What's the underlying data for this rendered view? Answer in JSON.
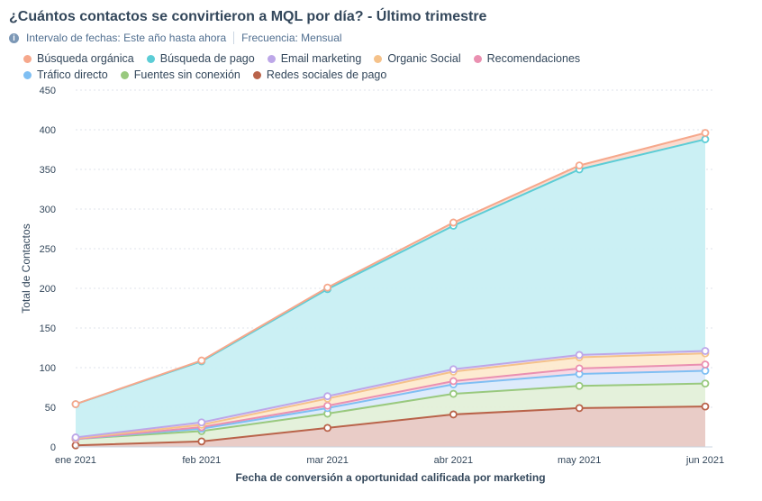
{
  "header": {
    "title": "¿Cuántos contactos se convirtieron a MQL por día? - Último trimestre",
    "date_range": "Intervalo de fechas: Este año hasta ahora",
    "frequency": "Frecuencia: Mensual",
    "info_icon": "info-icon"
  },
  "chart_data": {
    "type": "area",
    "stacked": true,
    "x": [
      "ene 2021",
      "feb 2021",
      "mar 2021",
      "abr 2021",
      "may 2021",
      "jun 2021"
    ],
    "xlabel": "Fecha de conversión a oportunidad calificada por marketing",
    "ylabel": "Total de Contactos",
    "ylim": [
      0,
      450
    ],
    "yticks": [
      0,
      50,
      100,
      150,
      200,
      250,
      300,
      350,
      400,
      450
    ],
    "grid": true,
    "legend_position": "top-left",
    "series": [
      {
        "name": "Redes sociales de pago",
        "color": "#b9634a",
        "fill": "#e8c9c4",
        "values": [
          2,
          7,
          24,
          41,
          49,
          51
        ]
      },
      {
        "name": "Fuentes sin conexión",
        "color": "#99c97e",
        "fill": "#e3f0d9",
        "values": [
          8,
          13,
          18,
          26,
          28,
          29
        ]
      },
      {
        "name": "Tráfico directo",
        "color": "#7fbff3",
        "fill": "#dbeafb",
        "values": [
          0,
          3,
          7,
          12,
          15,
          16
        ]
      },
      {
        "name": "Recomendaciones",
        "color": "#ea90b1",
        "fill": "#f7d8e4",
        "values": [
          0,
          2,
          3,
          4,
          7,
          8
        ]
      },
      {
        "name": "Organic Social",
        "color": "#f5c28a",
        "fill": "#fdeacf",
        "values": [
          1,
          3,
          9,
          12,
          14,
          14
        ]
      },
      {
        "name": "Email marketing",
        "color": "#bda7e8",
        "fill": "#e8e0f8",
        "values": [
          1,
          3,
          3,
          3,
          3,
          3
        ]
      },
      {
        "name": "Búsqueda de pago",
        "color": "#5ccdd6",
        "fill": "#c8eff3",
        "values": [
          42,
          77,
          135,
          181,
          234,
          267
        ]
      },
      {
        "name": "Búsqueda orgánica",
        "color": "#f6a88c",
        "fill": "#fbd9cc",
        "values": [
          0,
          1,
          2,
          4,
          5,
          8
        ]
      }
    ]
  },
  "legend": {
    "row1": [
      {
        "label": "Búsqueda orgánica",
        "color": "#f6a88c"
      },
      {
        "label": "Búsqueda de pago",
        "color": "#5ccdd6"
      },
      {
        "label": "Email marketing",
        "color": "#bda7e8"
      },
      {
        "label": "Organic Social",
        "color": "#f5c28a"
      },
      {
        "label": "Recomendaciones",
        "color": "#ea90b1"
      }
    ],
    "row2": [
      {
        "label": "Tráfico directo",
        "color": "#7fbff3"
      },
      {
        "label": "Fuentes sin conexión",
        "color": "#99c97e"
      },
      {
        "label": "Redes sociales de pago",
        "color": "#b9634a"
      }
    ]
  }
}
